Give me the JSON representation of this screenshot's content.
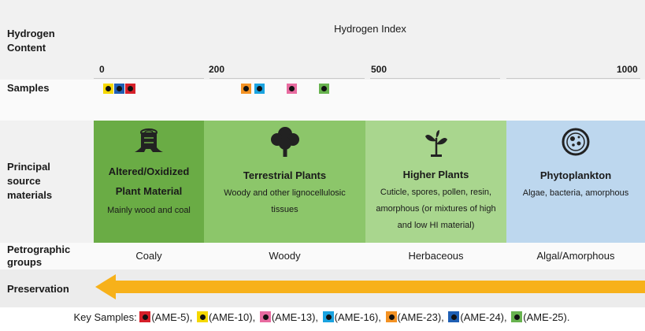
{
  "header": {
    "row_label": "Hydrogen Content",
    "axis_title": "Hydrogen Index",
    "ticks": [
      "0",
      "200",
      "500",
      "1000"
    ]
  },
  "samples_row": {
    "label": "Samples",
    "colors": [
      "#f5d800",
      "#1f5fb4",
      "#d6202a",
      "#f39224",
      "#1aa3e0",
      "#e86ba0",
      "#68b34f"
    ]
  },
  "materials_row": {
    "label": "Principal source materials",
    "panels": [
      {
        "title_line1": "Altered/Oxidized",
        "title_line2": "Plant Material",
        "desc": "Mainly wood and coal",
        "color": "#6aac45",
        "icon": "tree-stump-icon"
      },
      {
        "title_line1": "Terrestrial Plants",
        "desc_line1": "Woody and other lignocellulosic",
        "desc_line2": "tissues",
        "color": "#8cc66a",
        "icon": "tree-icon"
      },
      {
        "title_line1": "Higher Plants",
        "desc_line1": "Cuticle, spores, pollen, resin,",
        "desc_line2": "amorphous (or mixtures of high",
        "desc_line3": "and low HI material)",
        "color": "#a9d68e",
        "icon": "sprout-icon"
      },
      {
        "title_line1": "Phytoplankton",
        "desc_line1": "Algae, bacteria, amorphous",
        "color": "#bdd7ee",
        "icon": "microorganism-icon"
      }
    ]
  },
  "petrographic_row": {
    "label": "Petrographic groups",
    "groups": [
      "Coaly",
      "Woody",
      "Herbaceous",
      "Algal/Amorphous"
    ]
  },
  "preservation_row": {
    "label": "Preservation",
    "arrow_color": "#f7b11a"
  },
  "key": {
    "prefix": "Key Samples:",
    "items": [
      {
        "label": "(AME-5),",
        "color": "#d6202a"
      },
      {
        "label": "(AME-10),",
        "color": "#f5d800"
      },
      {
        "label": "(AME-13),",
        "color": "#e86ba0"
      },
      {
        "label": "(AME-16),",
        "color": "#1aa3e0"
      },
      {
        "label": "(AME-23),",
        "color": "#f39224"
      },
      {
        "label": "(AME-24),",
        "color": "#1f5fb4"
      },
      {
        "label": "(AME-25).",
        "color": "#68b34f"
      }
    ]
  }
}
